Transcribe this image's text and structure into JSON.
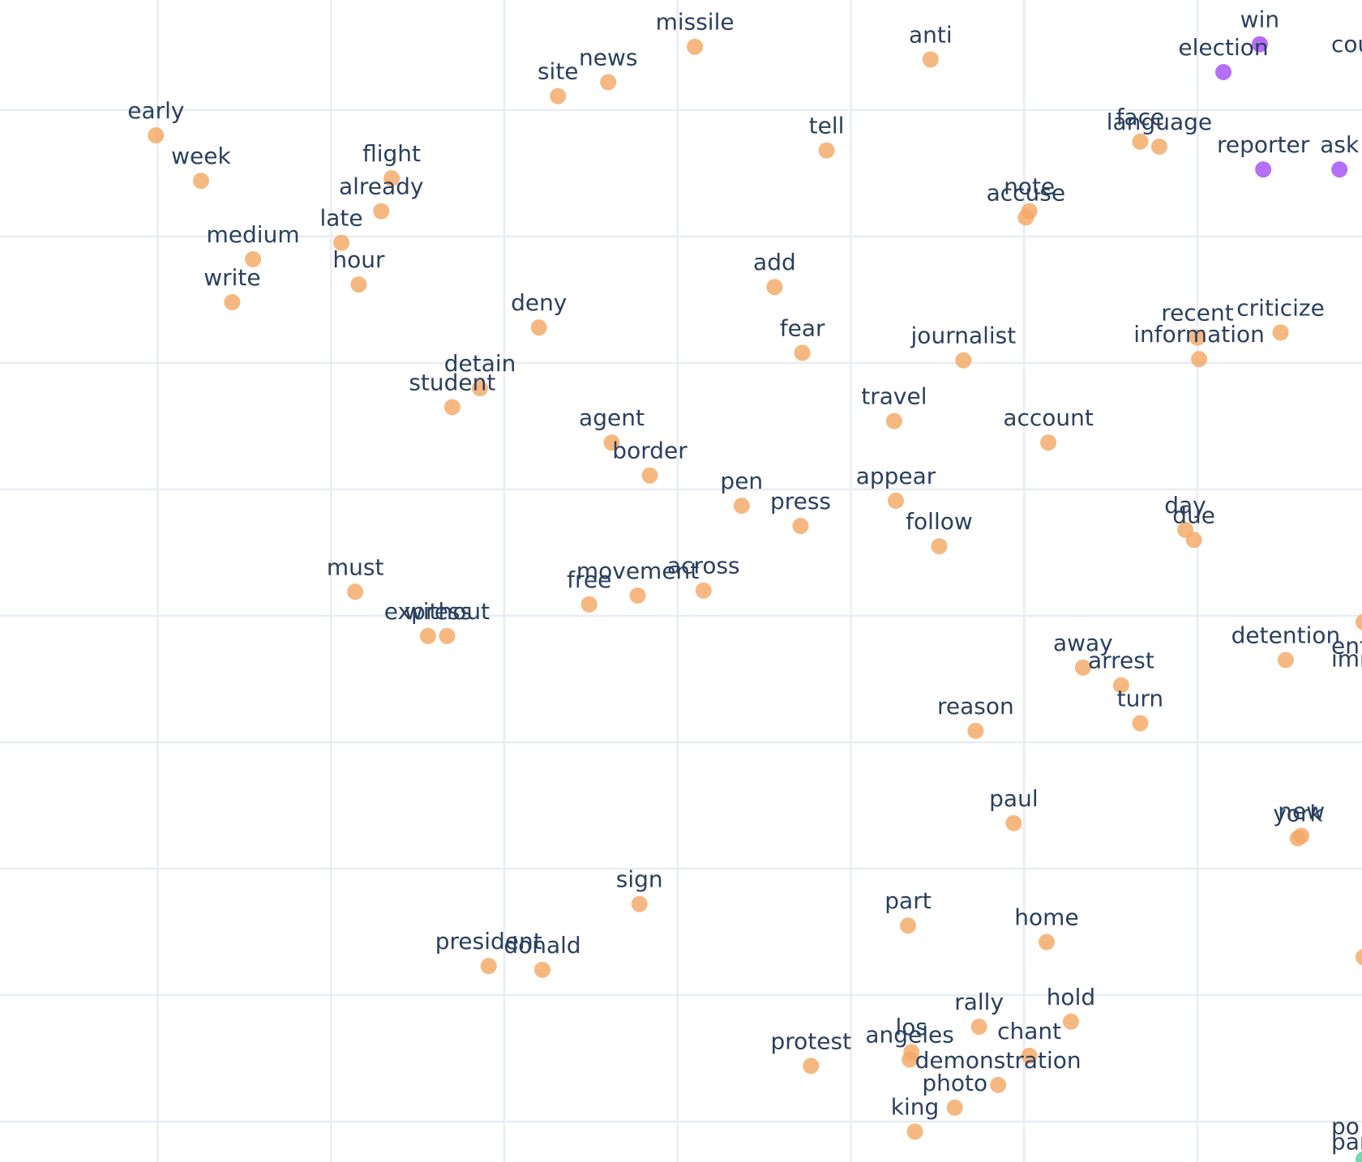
{
  "chart_data": {
    "type": "scatter",
    "title": "",
    "xlabel": "",
    "ylabel": "",
    "grid": true,
    "x_grid_ticks": [
      0,
      1,
      2,
      3,
      4,
      5,
      6,
      7
    ],
    "y_grid_ticks": [
      0,
      1,
      2,
      3,
      4,
      5,
      6,
      7,
      8,
      9
    ],
    "xlim": [
      -0.91,
      6.95
    ],
    "ylim": [
      -0.32,
      8.87
    ],
    "colors": {
      "orange": "#f4a661",
      "purple": "#a855f7",
      "green": "#4fcf9c",
      "label": "#2a3f5f",
      "grid": "#e8ecf3"
    },
    "series": [
      {
        "color": "orange",
        "points": [
          {
            "label": "missile",
            "x": 3.1,
            "y": 8.5
          },
          {
            "label": "anti",
            "x": 4.46,
            "y": 8.4
          },
          {
            "label": "site",
            "x": 2.31,
            "y": 8.11
          },
          {
            "label": "news",
            "x": 2.6,
            "y": 8.22
          },
          {
            "label": "early",
            "x": -0.01,
            "y": 7.8
          },
          {
            "label": "tell",
            "x": 3.86,
            "y": 7.68
          },
          {
            "label": "face",
            "x": 5.67,
            "y": 7.75
          },
          {
            "label": "language",
            "x": 5.78,
            "y": 7.71
          },
          {
            "label": "week",
            "x": 0.25,
            "y": 7.44
          },
          {
            "label": "flight",
            "x": 1.35,
            "y": 7.46
          },
          {
            "label": "already",
            "x": 1.29,
            "y": 7.2
          },
          {
            "label": "note",
            "x": 5.03,
            "y": 7.2
          },
          {
            "label": "accuse",
            "x": 5.01,
            "y": 7.15
          },
          {
            "label": "late",
            "x": 1.06,
            "y": 6.95
          },
          {
            "label": "medium",
            "x": 0.55,
            "y": 6.82
          },
          {
            "label": "hour",
            "x": 1.16,
            "y": 6.62
          },
          {
            "label": "write",
            "x": 0.43,
            "y": 6.48
          },
          {
            "label": "add",
            "x": 3.56,
            "y": 6.6
          },
          {
            "label": "deny",
            "x": 2.2,
            "y": 6.28
          },
          {
            "label": "fear",
            "x": 3.72,
            "y": 6.08
          },
          {
            "label": "journalist",
            "x": 4.65,
            "y": 6.02
          },
          {
            "label": "recent",
            "x": 6.0,
            "y": 6.2
          },
          {
            "label": "information",
            "x": 6.01,
            "y": 6.03
          },
          {
            "label": "criticize",
            "x": 6.48,
            "y": 6.24
          },
          {
            "label": "detain",
            "x": 1.86,
            "y": 5.8
          },
          {
            "label": "student",
            "x": 1.7,
            "y": 5.65
          },
          {
            "label": "travel",
            "x": 4.25,
            "y": 5.54
          },
          {
            "label": "account",
            "x": 5.14,
            "y": 5.37
          },
          {
            "label": "agent",
            "x": 2.62,
            "y": 5.37
          },
          {
            "label": "border",
            "x": 2.84,
            "y": 5.11
          },
          {
            "label": "pen",
            "x": 3.37,
            "y": 4.87
          },
          {
            "label": "press",
            "x": 3.71,
            "y": 4.71
          },
          {
            "label": "appear",
            "x": 4.26,
            "y": 4.91
          },
          {
            "label": "follow",
            "x": 4.51,
            "y": 4.55
          },
          {
            "label": "day",
            "x": 5.93,
            "y": 4.68
          },
          {
            "label": "due",
            "x": 5.98,
            "y": 4.6
          },
          {
            "label": "must",
            "x": 1.14,
            "y": 4.19
          },
          {
            "label": "movement",
            "x": 2.77,
            "y": 4.16
          },
          {
            "label": "across",
            "x": 3.15,
            "y": 4.2
          },
          {
            "label": "free",
            "x": 2.49,
            "y": 4.09
          },
          {
            "label": "express",
            "x": 1.56,
            "y": 3.84
          },
          {
            "label": "without",
            "x": 1.67,
            "y": 3.84
          },
          {
            "label": "detention",
            "x": 6.51,
            "y": 3.65
          },
          {
            "label": "away",
            "x": 5.34,
            "y": 3.59
          },
          {
            "label": "arrest",
            "x": 5.56,
            "y": 3.45
          },
          {
            "label": "turn",
            "x": 5.67,
            "y": 3.15
          },
          {
            "label": "reason",
            "x": 4.72,
            "y": 3.09
          },
          {
            "label": "paul",
            "x": 4.94,
            "y": 2.36
          },
          {
            "label": "new",
            "x": 6.6,
            "y": 2.26
          },
          {
            "label": "york",
            "x": 6.58,
            "y": 2.24
          },
          {
            "label": "sign",
            "x": 2.78,
            "y": 1.72
          },
          {
            "label": "part",
            "x": 4.33,
            "y": 1.55
          },
          {
            "label": "home",
            "x": 5.13,
            "y": 1.42
          },
          {
            "label": "president",
            "x": 1.91,
            "y": 1.23
          },
          {
            "label": "donald",
            "x": 2.22,
            "y": 1.2
          },
          {
            "label": "rally",
            "x": 4.74,
            "y": 0.75
          },
          {
            "label": "hold",
            "x": 5.27,
            "y": 0.79
          },
          {
            "label": "los",
            "x": 4.35,
            "y": 0.55
          },
          {
            "label": "angeles",
            "x": 4.34,
            "y": 0.49
          },
          {
            "label": "protest",
            "x": 3.77,
            "y": 0.44
          },
          {
            "label": "chant",
            "x": 5.03,
            "y": 0.52
          },
          {
            "label": "demonstration",
            "x": 4.85,
            "y": 0.29
          },
          {
            "label": "photo",
            "x": 4.6,
            "y": 0.11
          },
          {
            "label": "king",
            "x": 4.37,
            "y": -0.08
          }
        ]
      },
      {
        "color": "purple",
        "points": [
          {
            "label": "win",
            "x": 6.36,
            "y": 8.52
          },
          {
            "label": "election",
            "x": 6.15,
            "y": 8.3
          },
          {
            "label": "reporter",
            "x": 6.38,
            "y": 7.53
          },
          {
            "label": "ask",
            "x": 6.82,
            "y": 7.53
          }
        ]
      }
    ],
    "cropped_edge_labels": [
      "cou",
      "enfor",
      "immig",
      "po",
      "par"
    ]
  }
}
